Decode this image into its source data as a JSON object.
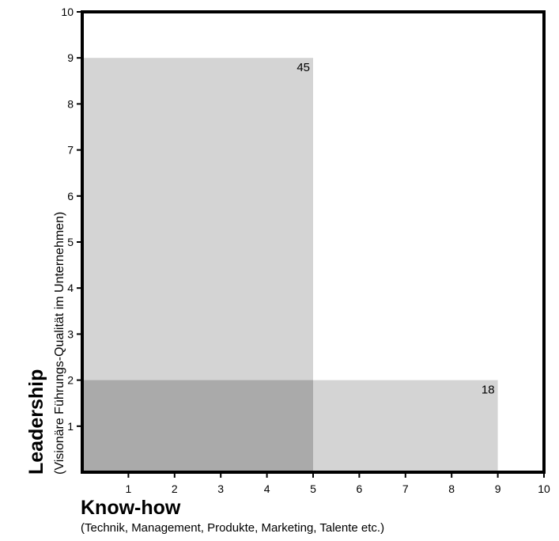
{
  "chart_data": {
    "type": "area",
    "xlabel": "Know-how",
    "xlabel_sub": "(Technik, Management, Produkte, Marketing, Talente etc.)",
    "ylabel": "Leadership",
    "ylabel_sub": "(Visionäre Führungs-Qualität im Unternehmen)",
    "xlim": [
      0,
      10
    ],
    "ylim": [
      0,
      10
    ],
    "xticks": [
      "1",
      "2",
      "3",
      "4",
      "5",
      "6",
      "7",
      "8",
      "9",
      "10"
    ],
    "yticks": [
      "1",
      "2",
      "3",
      "4",
      "5",
      "6",
      "7",
      "8",
      "9",
      "10"
    ],
    "rectangles": [
      {
        "x": 5,
        "y": 9,
        "label": "45"
      },
      {
        "x": 9,
        "y": 2,
        "label": "18"
      }
    ],
    "colors": {
      "fill": "#d4d4d4",
      "overlap": "#aaaaaa",
      "axis": "#000000"
    },
    "grid": false
  }
}
